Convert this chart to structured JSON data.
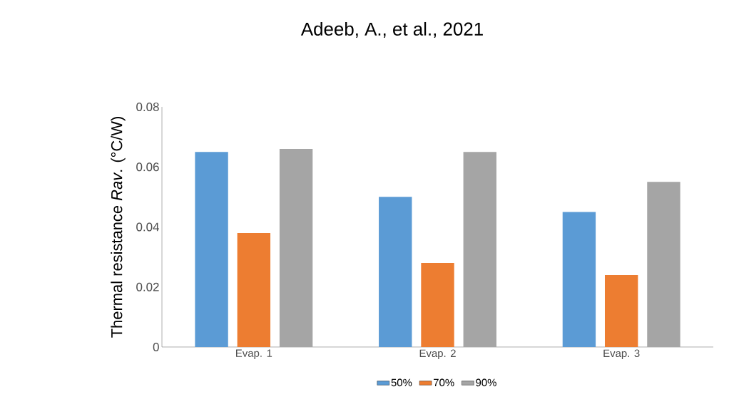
{
  "chart_data": {
    "type": "bar",
    "title": "Adeeb, A., et al., 2021",
    "ylabel": "Thermal resistance *Rav*. (°C/W)",
    "categories": [
      "Evap. 1",
      "Evap. 2",
      "Evap. 3"
    ],
    "series": [
      {
        "name": "50%",
        "color": "#5b9bd5",
        "values": [
          0.065,
          0.05,
          0.045
        ]
      },
      {
        "name": "70%",
        "color": "#ed7d31",
        "values": [
          0.038,
          0.028,
          0.024
        ]
      },
      {
        "name": "90%",
        "color": "#a5a5a5",
        "values": [
          0.066,
          0.065,
          0.055
        ]
      }
    ],
    "ylim": [
      0,
      0.08
    ],
    "yticks": [
      0,
      0.02,
      0.04,
      0.06,
      0.08
    ],
    "grid": false,
    "legend": "bottom"
  }
}
